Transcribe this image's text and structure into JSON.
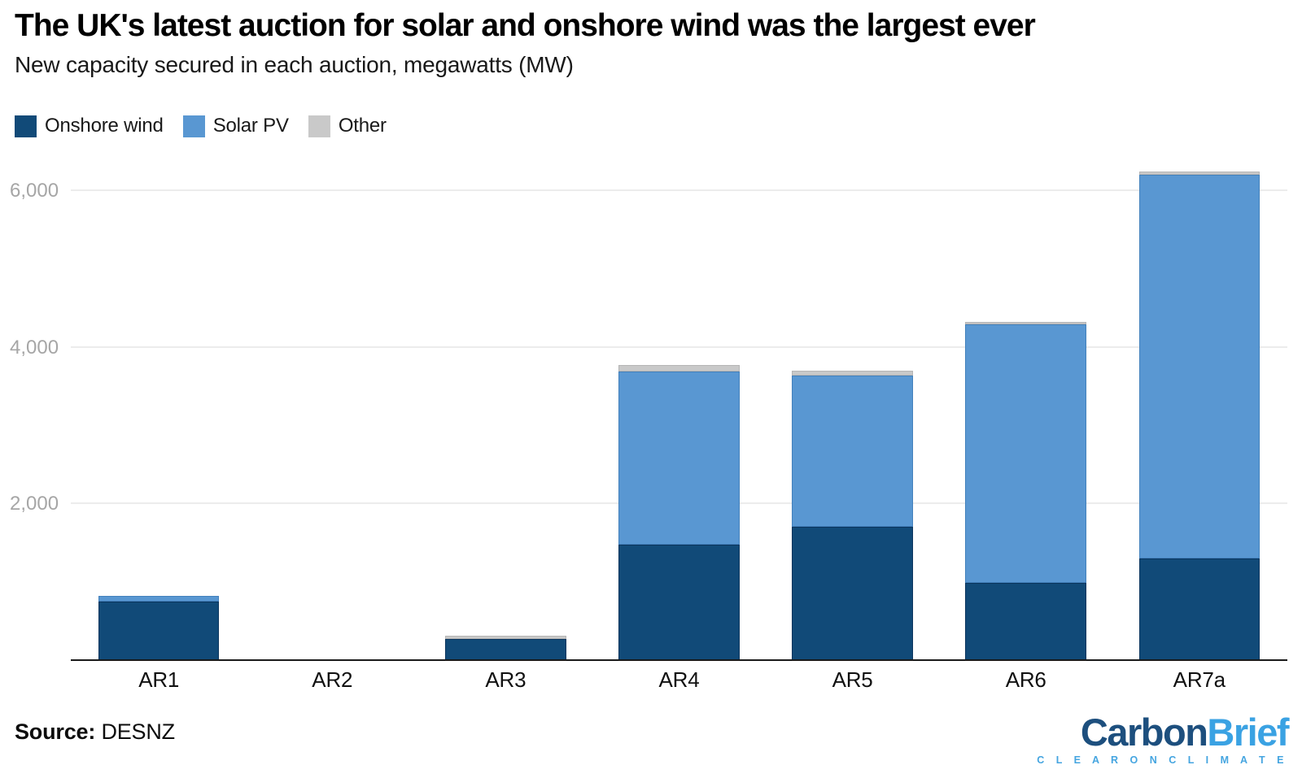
{
  "header": {
    "title": "The UK's latest auction for solar and onshore wind was the largest ever",
    "subtitle": "New capacity secured in each auction, megawatts (MW)"
  },
  "legend": [
    {
      "label": "Onshore wind",
      "color": "#114a78"
    },
    {
      "label": "Solar PV",
      "color": "#5997d2"
    },
    {
      "label": "Other",
      "color": "#c9c9c9"
    }
  ],
  "chart_data": {
    "type": "bar",
    "stacked": true,
    "title": "The UK's latest auction for solar and onshore wind was the largest ever",
    "subtitle": "New capacity secured in each auction, megawatts (MW)",
    "unit": "MW",
    "categories": [
      "AR1",
      "AR2",
      "AR3",
      "AR4",
      "AR5",
      "AR6",
      "AR7a"
    ],
    "series": [
      {
        "name": "Onshore wind",
        "color": "#114a78",
        "border": "#0b355e",
        "values": [
          749,
          0,
          274,
          1478,
          1704,
          990,
          1298
        ]
      },
      {
        "name": "Solar PV",
        "color": "#5997d2",
        "border": "#4381bc",
        "values": [
          72,
          0,
          0,
          2209,
          1928,
          3293,
          4902
        ]
      },
      {
        "name": "Other",
        "color": "#c9c9c9",
        "border": "#b5b5b5",
        "values": [
          0,
          0,
          42,
          84,
          65,
          30,
          35
        ]
      }
    ],
    "totals": [
      821,
      0,
      316,
      3771,
      3697,
      4313,
      6235
    ],
    "ylim": [
      0,
      6400
    ],
    "yticks": [
      2000,
      4000,
      6000
    ],
    "ytick_labels": [
      "2,000",
      "4,000",
      "6,000"
    ],
    "grid": "horizontal",
    "legend_position": "top-left"
  },
  "footer": {
    "source_label": "Source:",
    "source_value": "DESNZ",
    "logo": {
      "part1": "Carbon",
      "part2": "Brief",
      "tagline": "C L E A R   O N   C L I M A T E"
    }
  }
}
